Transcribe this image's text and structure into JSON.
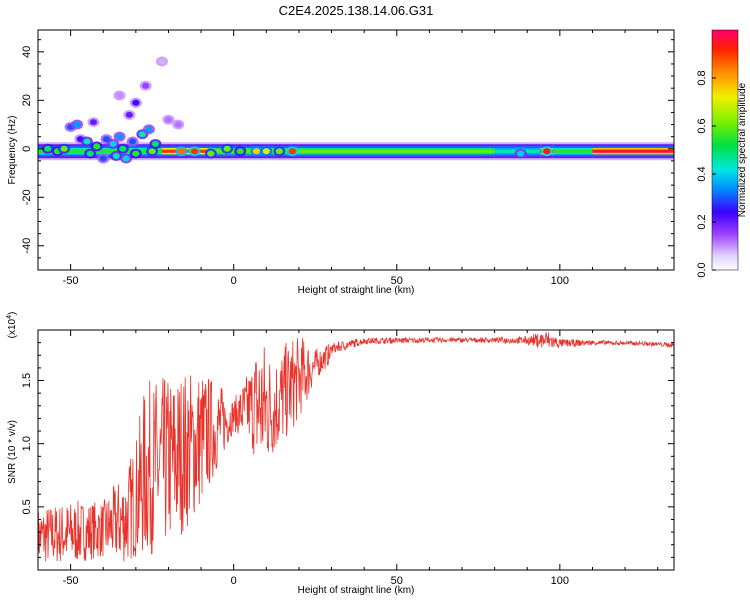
{
  "title": "C2E4.2025.138.14.06.G31",
  "colors": {
    "snr_line": "#e8322a",
    "frame": "#000000",
    "background": "#ffffff"
  },
  "chart_data": [
    {
      "type": "heatmap",
      "xlabel": "Height of straight line (km)",
      "ylabel": "Frequency (Hz)",
      "xlim": [
        -60,
        135
      ],
      "ylim": [
        -50,
        49
      ],
      "x_ticks": [
        "-50",
        "0",
        "50",
        "100"
      ],
      "y_ticks": [
        "40",
        "20",
        "0",
        "-20",
        "-40"
      ],
      "x_tick_values": [
        -50,
        0,
        50,
        100
      ],
      "y_tick_values": [
        40,
        20,
        0,
        -20,
        -40
      ],
      "grid": false,
      "main_band": {
        "description_values": "strong energy concentrated near 0 Hz across all heights",
        "center_hz": -1,
        "segments": [
          {
            "x0": -60,
            "x1": -22,
            "level": 0.55
          },
          {
            "x0": -22,
            "x1": -8,
            "level": 0.9
          },
          {
            "x0": -8,
            "x1": 20,
            "level": 0.6
          },
          {
            "x0": 20,
            "x1": 80,
            "level": 0.6
          },
          {
            "x0": 80,
            "x1": 94,
            "level": 0.45
          },
          {
            "x0": 94,
            "x1": 98,
            "level": 0.95
          },
          {
            "x0": 98,
            "x1": 110,
            "level": 0.55
          },
          {
            "x0": 110,
            "x1": 135,
            "level": 0.95
          }
        ]
      },
      "blobs": [
        {
          "x": -57,
          "y": 0,
          "v": 0.5
        },
        {
          "x": -54,
          "y": -1,
          "v": 0.55
        },
        {
          "x": -52,
          "y": 0,
          "v": 0.6
        },
        {
          "x": -50,
          "y": 9,
          "v": 0.3
        },
        {
          "x": -48,
          "y": 10,
          "v": 0.35
        },
        {
          "x": -47,
          "y": 4,
          "v": 0.25
        },
        {
          "x": -45,
          "y": 3,
          "v": 0.45
        },
        {
          "x": -44,
          "y": -2,
          "v": 0.5
        },
        {
          "x": -42,
          "y": 1,
          "v": 0.55
        },
        {
          "x": -40,
          "y": -4,
          "v": 0.3
        },
        {
          "x": -39,
          "y": 4,
          "v": 0.3
        },
        {
          "x": -37,
          "y": 2,
          "v": 0.4
        },
        {
          "x": -36,
          "y": -3,
          "v": 0.45
        },
        {
          "x": -35,
          "y": 5,
          "v": 0.35
        },
        {
          "x": -34,
          "y": 0,
          "v": 0.5
        },
        {
          "x": -33,
          "y": -4,
          "v": 0.4
        },
        {
          "x": -31,
          "y": 3,
          "v": 0.3
        },
        {
          "x": -30,
          "y": -2,
          "v": 0.55
        },
        {
          "x": -28,
          "y": 6,
          "v": 0.45
        },
        {
          "x": -26,
          "y": 8,
          "v": 0.35
        },
        {
          "x": -25,
          "y": -1,
          "v": 0.6
        },
        {
          "x": -24,
          "y": 2,
          "v": 0.5
        },
        {
          "x": -43,
          "y": 11,
          "v": 0.2
        },
        {
          "x": -32,
          "y": 14,
          "v": 0.2
        },
        {
          "x": -30,
          "y": 19,
          "v": 0.25
        },
        {
          "x": -27,
          "y": 26,
          "v": 0.15
        },
        {
          "x": -22,
          "y": 36,
          "v": 0.08
        },
        {
          "x": -20,
          "y": 12,
          "v": 0.12
        },
        {
          "x": -17,
          "y": 10,
          "v": 0.12
        },
        {
          "x": -35,
          "y": 22,
          "v": 0.1
        },
        {
          "x": -16,
          "y": -1,
          "v": 0.85
        },
        {
          "x": -12,
          "y": -1,
          "v": 0.9
        },
        {
          "x": -7,
          "y": -2,
          "v": 0.6
        },
        {
          "x": -2,
          "y": 0,
          "v": 0.6
        },
        {
          "x": 2,
          "y": -1,
          "v": 0.55
        },
        {
          "x": 7,
          "y": -1,
          "v": 0.75
        },
        {
          "x": 10,
          "y": -1,
          "v": 0.7
        },
        {
          "x": 14,
          "y": -1,
          "v": 0.6
        },
        {
          "x": 18,
          "y": -1,
          "v": 0.9
        },
        {
          "x": 88,
          "y": -2,
          "v": 0.4
        },
        {
          "x": 96,
          "y": -1,
          "v": 0.95
        }
      ]
    },
    {
      "type": "line",
      "xlabel": "Height of straight line (km)",
      "ylabel": "SNR (10 * v/v)",
      "scale_label": "(x10",
      "scale_exponent": "4",
      "xlim": [
        -60,
        135
      ],
      "ylim": [
        0,
        1.9
      ],
      "x_ticks": [
        "-50",
        "0",
        "50",
        "100"
      ],
      "y_ticks": [
        "0.5",
        "1.0",
        "1.5"
      ],
      "x_tick_values": [
        -50,
        0,
        50,
        100
      ],
      "y_tick_values": [
        0.5,
        1.0,
        1.5
      ],
      "grid": false,
      "series": [
        {
          "envelope_points": [
            {
              "x": -60,
              "low": 0.05,
              "high": 0.5
            },
            {
              "x": -50,
              "low": 0.05,
              "high": 0.55
            },
            {
              "x": -40,
              "low": 0.1,
              "high": 0.55
            },
            {
              "x": -33,
              "low": 0.05,
              "high": 0.8
            },
            {
              "x": -30,
              "low": 0.1,
              "high": 1.05
            },
            {
              "x": -27,
              "low": 0.1,
              "high": 1.5
            },
            {
              "x": -20,
              "low": 0.2,
              "high": 1.55
            },
            {
              "x": -15,
              "low": 0.3,
              "high": 1.6
            },
            {
              "x": -10,
              "low": 0.5,
              "high": 1.6
            },
            {
              "x": -5,
              "low": 0.8,
              "high": 1.5
            },
            {
              "x": 0,
              "low": 1.1,
              "high": 1.35
            },
            {
              "x": 5,
              "low": 1.0,
              "high": 1.6
            },
            {
              "x": 8,
              "low": 0.75,
              "high": 1.9
            },
            {
              "x": 12,
              "low": 0.9,
              "high": 1.7
            },
            {
              "x": 18,
              "low": 1.1,
              "high": 1.85
            },
            {
              "x": 22,
              "low": 1.3,
              "high": 1.85
            },
            {
              "x": 25,
              "low": 1.5,
              "high": 1.75
            },
            {
              "x": 30,
              "low": 1.65,
              "high": 1.8
            },
            {
              "x": 40,
              "low": 1.76,
              "high": 1.84
            },
            {
              "x": 60,
              "low": 1.78,
              "high": 1.84
            },
            {
              "x": 80,
              "low": 1.78,
              "high": 1.84
            },
            {
              "x": 90,
              "low": 1.75,
              "high": 1.85
            },
            {
              "x": 96,
              "low": 1.65,
              "high": 1.9
            },
            {
              "x": 100,
              "low": 1.72,
              "high": 1.83
            },
            {
              "x": 110,
              "low": 1.76,
              "high": 1.82
            },
            {
              "x": 125,
              "low": 1.76,
              "high": 1.81
            },
            {
              "x": 135,
              "low": 1.74,
              "high": 1.8
            }
          ]
        }
      ]
    }
  ],
  "colorbar": {
    "label": "Normalized spectral amplitude",
    "ticks": [
      "0.0",
      "0.2",
      "0.4",
      "0.6",
      "0.8"
    ],
    "tick_values": [
      0.0,
      0.2,
      0.4,
      0.6,
      0.8
    ],
    "range": [
      0,
      1
    ]
  }
}
